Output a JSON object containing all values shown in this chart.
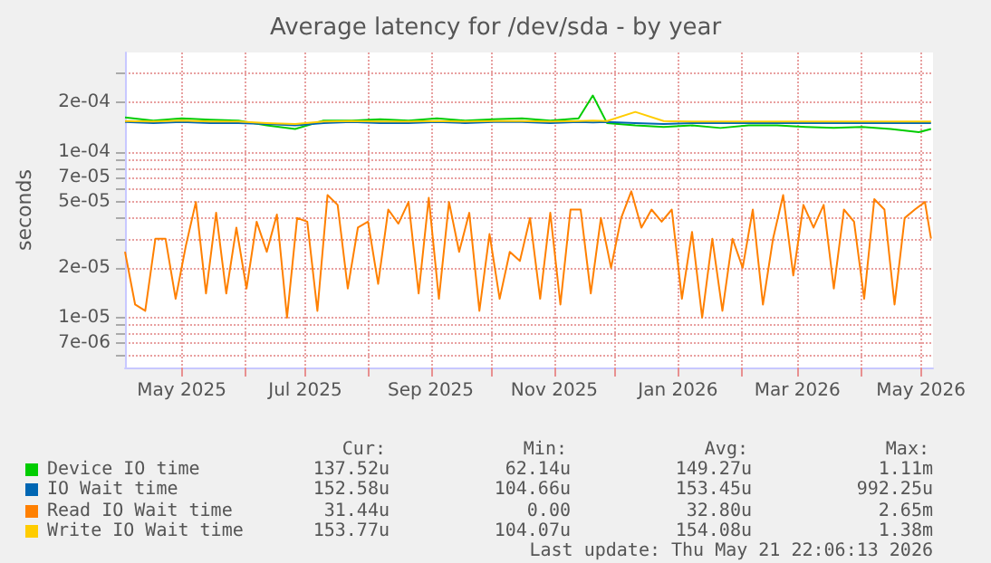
{
  "chart_data": {
    "type": "line",
    "title": "Average latency for /dev/sda - by year",
    "ylabel": "seconds",
    "log": true,
    "grid": true,
    "legend": "bottom",
    "marker": "none",
    "xlim": [
      "2025-04-03",
      "2026-05-07"
    ],
    "xticks": [
      {
        "value": "2025-05-01",
        "label": "May 2025"
      },
      {
        "value": "2025-06-01",
        "label": null
      },
      {
        "value": "2025-07-01",
        "label": "Jul 2025"
      },
      {
        "value": "2025-08-01",
        "label": null
      },
      {
        "value": "2025-09-01",
        "label": "Sep 2025"
      },
      {
        "value": "2025-10-01",
        "label": null
      },
      {
        "value": "2025-11-01",
        "label": "Nov 2025"
      },
      {
        "value": "2025-12-01",
        "label": null
      },
      {
        "value": "2026-01-01",
        "label": "Jan 2026"
      },
      {
        "value": "2026-02-01",
        "label": null
      },
      {
        "value": "2026-03-01",
        "label": "Mar 2026"
      },
      {
        "value": "2026-04-01",
        "label": null
      },
      {
        "value": "2026-05-01",
        "label": "May 2026"
      }
    ],
    "ylim": [
      5e-06,
      0.0004
    ],
    "yticks": [
      {
        "value": 6e-06,
        "label": null
      },
      {
        "value": 7e-06,
        "label": "7e-06"
      },
      {
        "value": 8e-06,
        "label": null
      },
      {
        "value": 9e-06,
        "label": null
      },
      {
        "value": 1e-05,
        "label": "1e-05"
      },
      {
        "value": 2e-05,
        "label": "2e-05"
      },
      {
        "value": 3e-05,
        "label": null
      },
      {
        "value": 4e-05,
        "label": null
      },
      {
        "value": 5e-05,
        "label": "5e-05"
      },
      {
        "value": 6e-05,
        "label": null
      },
      {
        "value": 7e-05,
        "label": "7e-05"
      },
      {
        "value": 8e-05,
        "label": null
      },
      {
        "value": 9e-05,
        "label": null
      },
      {
        "value": 0.0001,
        "label": "1e-04"
      },
      {
        "value": 0.0002,
        "label": "2e-04"
      },
      {
        "value": 0.0003,
        "label": null
      }
    ],
    "x": [
      "2025-04-03",
      "2025-04-17",
      "2025-05-01",
      "2025-05-15",
      "2025-05-29",
      "2025-06-12",
      "2025-06-26",
      "2025-07-10",
      "2025-07-24",
      "2025-08-07",
      "2025-08-21",
      "2025-09-04",
      "2025-09-18",
      "2025-10-02",
      "2025-10-16",
      "2025-10-30",
      "2025-11-13",
      "2025-11-20",
      "2025-11-27",
      "2025-12-11",
      "2025-12-25",
      "2026-01-08",
      "2026-01-22",
      "2026-02-05",
      "2026-02-19",
      "2026-03-05",
      "2026-03-19",
      "2026-04-02",
      "2026-04-16",
      "2026-04-30",
      "2026-05-06"
    ],
    "series": [
      {
        "name": "Device IO time",
        "color": "#00cc00",
        "values": [
          0.000162,
          0.000155,
          0.00016,
          0.000157,
          0.000155,
          0.000145,
          0.000138,
          0.000155,
          0.000155,
          0.000158,
          0.000155,
          0.00016,
          0.000155,
          0.000158,
          0.00016,
          0.000155,
          0.00016,
          0.00022,
          0.00015,
          0.000145,
          0.000142,
          0.000145,
          0.00014,
          0.000145,
          0.000145,
          0.000142,
          0.00014,
          0.000142,
          0.000138,
          0.000132,
          0.000138
        ]
      },
      {
        "name": "IO Wait time",
        "color": "#0066b3",
        "values": [
          0.000152,
          0.00015,
          0.000152,
          0.00015,
          0.00015,
          0.000148,
          0.000145,
          0.00015,
          0.000152,
          0.00015,
          0.00015,
          0.000152,
          0.00015,
          0.000152,
          0.000152,
          0.00015,
          0.000152,
          0.000151,
          0.000152,
          0.00015,
          0.000148,
          0.00015,
          0.00015,
          0.00015,
          0.00015,
          0.00015,
          0.00015,
          0.00015,
          0.00015,
          0.00015,
          0.00015
        ]
      },
      {
        "name": "Read IO Wait time",
        "color": "#ff8000",
        "x": [
          "2025-04-03",
          "2025-04-08",
          "2025-04-13",
          "2025-04-18",
          "2025-04-23",
          "2025-04-28",
          "2025-05-03",
          "2025-05-08",
          "2025-05-13",
          "2025-05-18",
          "2025-05-23",
          "2025-05-28",
          "2025-06-02",
          "2025-06-07",
          "2025-06-12",
          "2025-06-17",
          "2025-06-22",
          "2025-06-27",
          "2025-07-02",
          "2025-07-07",
          "2025-07-12",
          "2025-07-17",
          "2025-07-22",
          "2025-07-27",
          "2025-08-01",
          "2025-08-06",
          "2025-08-11",
          "2025-08-16",
          "2025-08-21",
          "2025-08-26",
          "2025-08-31",
          "2025-09-05",
          "2025-09-10",
          "2025-09-15",
          "2025-09-20",
          "2025-09-25",
          "2025-09-30",
          "2025-10-05",
          "2025-10-10",
          "2025-10-15",
          "2025-10-20",
          "2025-10-25",
          "2025-10-30",
          "2025-11-04",
          "2025-11-09",
          "2025-11-14",
          "2025-11-19",
          "2025-11-24",
          "2025-11-29",
          "2025-12-04",
          "2025-12-09",
          "2025-12-14",
          "2025-12-19",
          "2025-12-24",
          "2025-12-29",
          "2026-01-03",
          "2026-01-08",
          "2026-01-13",
          "2026-01-18",
          "2026-01-23",
          "2026-01-28",
          "2026-02-02",
          "2026-02-07",
          "2026-02-12",
          "2026-02-17",
          "2026-02-22",
          "2026-02-27",
          "2026-03-04",
          "2026-03-09",
          "2026-03-14",
          "2026-03-19",
          "2026-03-24",
          "2026-03-29",
          "2026-04-03",
          "2026-04-08",
          "2026-04-13",
          "2026-04-18",
          "2026-04-23",
          "2026-04-28",
          "2026-05-03",
          "2026-05-06"
        ],
        "values": [
          2.5e-05,
          1.2e-05,
          1.1e-05,
          3e-05,
          3e-05,
          1.3e-05,
          2.7e-05,
          5e-05,
          1.4e-05,
          4.3e-05,
          1.4e-05,
          3.5e-05,
          1.5e-05,
          3.8e-05,
          2.5e-05,
          4.2e-05,
          1e-05,
          4e-05,
          3.8e-05,
          1.1e-05,
          5.5e-05,
          4.8e-05,
          1.5e-05,
          3.5e-05,
          3.8e-05,
          1.6e-05,
          4.5e-05,
          3.7e-05,
          5e-05,
          1.4e-05,
          5.3e-05,
          1.3e-05,
          5e-05,
          2.5e-05,
          4.3e-05,
          1.1e-05,
          3.2e-05,
          1.3e-05,
          2.5e-05,
          2.2e-05,
          4e-05,
          1.3e-05,
          4.3e-05,
          1.2e-05,
          4.5e-05,
          4.5e-05,
          1.4e-05,
          4e-05,
          2e-05,
          4e-05,
          5.8e-05,
          3.5e-05,
          4.5e-05,
          3.8e-05,
          4.5e-05,
          1.3e-05,
          3.3e-05,
          1e-05,
          3e-05,
          1.1e-05,
          3e-05,
          2e-05,
          4.5e-05,
          1.2e-05,
          3e-05,
          5.5e-05,
          1.8e-05,
          4.8e-05,
          3.5e-05,
          4.8e-05,
          1.5e-05,
          4.5e-05,
          3.8e-05,
          1.3e-05,
          5.2e-05,
          4.5e-05,
          1.2e-05,
          4e-05,
          4.5e-05,
          5e-05,
          3e-05
        ]
      },
      {
        "name": "Write IO Wait time",
        "color": "#ffcc00",
        "values": [
          0.000154,
          0.000153,
          0.000155,
          0.000153,
          0.000153,
          0.00015,
          0.000148,
          0.000153,
          0.000154,
          0.000153,
          0.000153,
          0.000154,
          0.000153,
          0.000154,
          0.000154,
          0.000153,
          0.000154,
          0.000155,
          0.000154,
          0.000175,
          0.000154,
          0.000153,
          0.000153,
          0.000153,
          0.000153,
          0.000153,
          0.000153,
          0.000153,
          0.000153,
          0.000153,
          0.000153
        ]
      }
    ],
    "annotations": [
      "Cur:",
      "Min:",
      "Avg:",
      "Max:",
      "137.52u",
      "62.14u",
      "149.27u",
      "1.11m",
      "152.58u",
      "104.66u",
      "153.45u",
      "992.25u",
      "31.44u",
      "0.00",
      "32.80u",
      "2.65m",
      "153.77u",
      "104.07u",
      "154.08u",
      "1.38m",
      "Last update: Thu May 21 22:06:13 2026"
    ]
  }
}
